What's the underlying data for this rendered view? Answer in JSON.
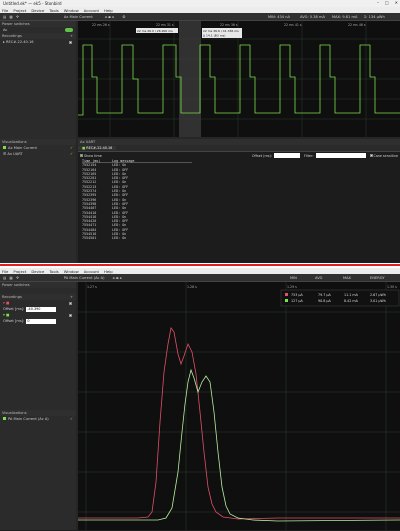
{
  "top": {
    "title": "Untitled.ek* — ek5 - Stonbird",
    "menu": [
      "File",
      "Project",
      "Device",
      "Tools",
      "Window",
      "Account",
      "Help"
    ],
    "toolbar": {
      "signal_name": "Ax Main Current",
      "readouts": [
        "MIN: 434 nA",
        "AVG: 5.38 mA",
        "MAX: 9.81 mA",
        "Σ: 134 μWh"
      ]
    },
    "sidebar": {
      "power_switches": "Power switches",
      "switch_label": "Ac",
      "recordings": "Recordings",
      "recording_item": "REC#-22.40.16",
      "visualizations": "Visualizations",
      "vis_items": [
        "Ax Main Current",
        "Ax UART"
      ]
    },
    "time_ticks": [
      "22 ms  26 s",
      "22 ms  31 s",
      "22 ms  36 s",
      "22 ms  41 s",
      "22 ms  46 s"
    ],
    "cursors": {
      "left": "22 ms  26.0 / 26.900 ms",
      "right": "22 ms  36.6 / 41.336 ms",
      "right2": "Δ  14.1 (B3 ms)"
    },
    "log_panel": {
      "title": "Ax UART",
      "tab": "REC#-22.40.16",
      "show_time": "Show time",
      "offset_label": "Offset (ms):",
      "filter_label": "Filter:",
      "case_sensitive": "Case sensitive",
      "col_time": "Time (ms)",
      "col_msg": "Log message",
      "rows": [
        [
          "7552154",
          "LED: On"
        ],
        [
          "7552164",
          "LED: OFF"
        ],
        [
          "7552165",
          "LED: On"
        ],
        [
          "7552201",
          "LED: OFF"
        ],
        [
          "7552212",
          "LED: On"
        ],
        [
          "7552213",
          "LED: OFF"
        ],
        [
          "7552374",
          "LED: On"
        ],
        [
          "7552395",
          "LED: OFF"
        ],
        [
          "7552396",
          "LED: On"
        ],
        [
          "7554398",
          "LED: OFF"
        ],
        [
          "7554407",
          "LED: On"
        ],
        [
          "7554410",
          "LED: OFF"
        ],
        [
          "7554416",
          "LED: On"
        ],
        [
          "7554420",
          "LED: OFF"
        ],
        [
          "7554471",
          "LED: On"
        ],
        [
          "7554484",
          "LED: OFF"
        ],
        [
          "7554510",
          "LED: On"
        ],
        [
          "7554501",
          "LED: On"
        ]
      ]
    }
  },
  "bottom": {
    "menu": [
      "File",
      "Project",
      "Device",
      "Tools",
      "Window",
      "Account",
      "Help"
    ],
    "toolbar": {
      "signal_name": "PA Main Current (Ac A)",
      "readouts": [
        "MIN",
        "AVG",
        "MAX",
        "ENERGY"
      ],
      "energy_sub": "1.5 s"
    },
    "sidebar": {
      "power_switches": "Power switches",
      "recordings": "Recordings",
      "offset_label": "Offset [ms]:",
      "offset1": "-40.390",
      "offset2": "0",
      "visualizations": "Visualizations",
      "vis_item": "PA Main Current (Ac A)"
    },
    "time_ticks": [
      "1.27 s",
      "1.28 s",
      "1.29 s",
      "1.30 s"
    ],
    "readout_rows": [
      [
        "753 μA",
        "79.7 μA",
        "11.1 mA",
        "2.67 μWh"
      ],
      [
        "127 μA",
        "90.8 μA",
        "8.42 mA",
        "3.01 μWh"
      ]
    ]
  },
  "colors": {
    "green": "#7be04a",
    "red": "#e0506a",
    "light_green": "#b6f0a0"
  }
}
